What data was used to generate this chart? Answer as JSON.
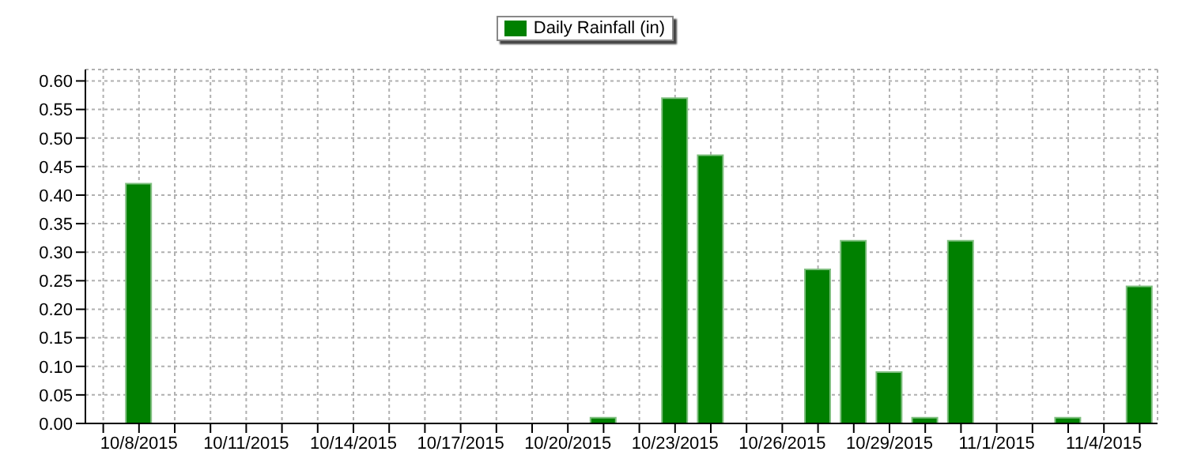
{
  "chart_data": {
    "type": "bar",
    "categories": [
      null,
      "10/8/2015",
      null,
      null,
      "10/11/2015",
      null,
      null,
      "10/14/2015",
      null,
      null,
      "10/17/2015",
      null,
      null,
      "10/20/2015",
      null,
      null,
      "10/23/2015",
      null,
      null,
      "10/26/2015",
      null,
      null,
      "10/29/2015",
      null,
      null,
      "11/1/2015",
      null,
      null,
      "11/4/2015",
      null
    ],
    "series": [
      {
        "name": "Daily Rainfall (in)",
        "color": "#008000",
        "values": [
          0,
          0.42,
          0,
          0,
          0,
          0,
          0,
          0,
          0,
          0,
          0,
          0,
          0,
          0,
          0.01,
          0,
          0.57,
          0.47,
          0,
          0,
          0.27,
          0.32,
          0.09,
          0.01,
          0.32,
          0,
          0,
          0.01,
          0,
          0.24
        ]
      }
    ],
    "ylim": [
      0,
      0.62
    ],
    "yticks": [
      {
        "value": 0,
        "label": "0.00"
      },
      {
        "value": 0.05,
        "label": "0.05"
      },
      {
        "value": 0.1,
        "label": "0.10"
      },
      {
        "value": 0.15,
        "label": "0.15"
      },
      {
        "value": 0.2,
        "label": "0.20"
      },
      {
        "value": 0.25,
        "label": "0.25"
      },
      {
        "value": 0.3,
        "label": "0.30"
      },
      {
        "value": 0.35,
        "label": "0.35"
      },
      {
        "value": 0.4,
        "label": "0.40"
      },
      {
        "value": 0.45,
        "label": "0.45"
      },
      {
        "value": 0.5,
        "label": "0.50"
      },
      {
        "value": 0.55,
        "label": "0.55"
      },
      {
        "value": 0.6,
        "label": "0.60"
      }
    ],
    "grid": true,
    "legend": "top"
  }
}
